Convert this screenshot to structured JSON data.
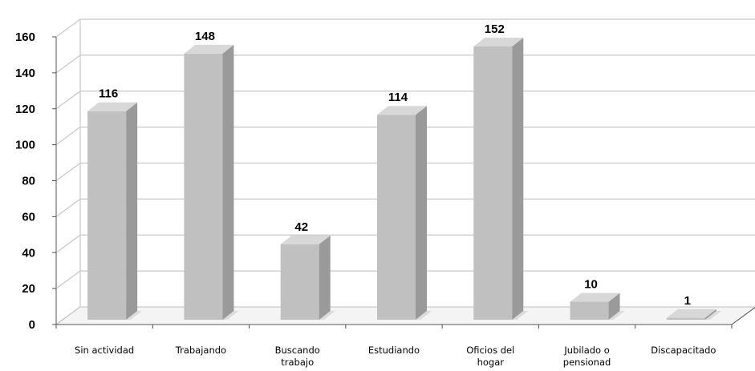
{
  "chart_data": {
    "type": "bar",
    "style": "3d-column",
    "categories": [
      [
        "Sin actividad"
      ],
      [
        "Trabajando"
      ],
      [
        "Buscando",
        "trabajo"
      ],
      [
        "Estudiando"
      ],
      [
        "Oficios del",
        "hogar"
      ],
      [
        "Jubilado o",
        "pensionad"
      ],
      [
        "Discapacitado"
      ]
    ],
    "values": [
      116,
      148,
      42,
      114,
      152,
      10,
      1
    ],
    "ylim": [
      0,
      160
    ],
    "yticks": [
      0,
      20,
      40,
      60,
      80,
      100,
      120,
      140,
      160
    ],
    "grid": true,
    "legend": "none",
    "colors": {
      "bar_front": "#c0c0c0",
      "bar_side": "#9a9a9a",
      "bar_top": "#d8d8d8",
      "gridline": "#c8c8c8",
      "axis": "#555555"
    }
  }
}
